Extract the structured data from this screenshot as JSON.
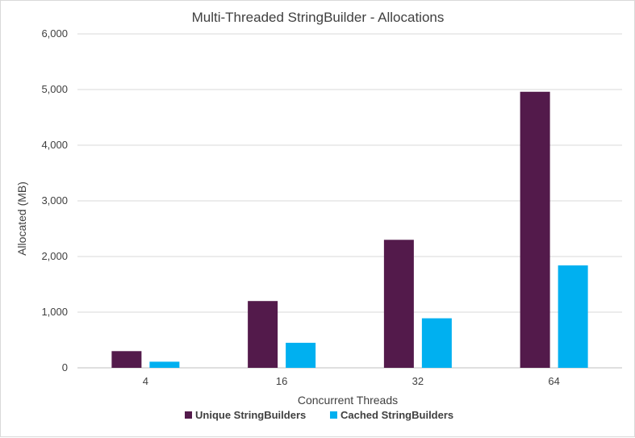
{
  "chart_data": {
    "type": "bar",
    "title": "Multi-Threaded StringBuilder - Allocations",
    "xlabel": "Concurrent Threads",
    "ylabel": "Allocated (MB)",
    "categories": [
      "4",
      "16",
      "32",
      "64"
    ],
    "series": [
      {
        "name": "Unique StringBuilders",
        "color": "#531A4B",
        "values": [
          300,
          1200,
          2300,
          4960
        ]
      },
      {
        "name": "Cached StringBuilders",
        "color": "#00B0F0",
        "values": [
          110,
          450,
          890,
          1840
        ]
      }
    ],
    "ylim": [
      0,
      6000
    ],
    "yticks": [
      0,
      1000,
      2000,
      3000,
      4000,
      5000,
      6000
    ],
    "ytick_labels": [
      "0",
      "1,000",
      "2,000",
      "3,000",
      "4,000",
      "5,000",
      "6,000"
    ],
    "grid": true,
    "legend_position": "bottom"
  }
}
